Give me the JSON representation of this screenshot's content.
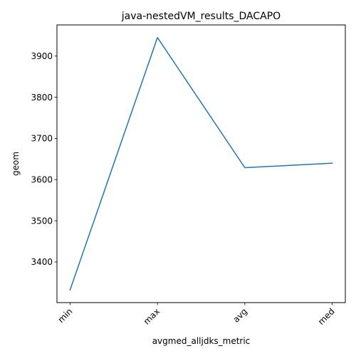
{
  "chart_data": {
    "type": "line",
    "title": "java-nestedVM_results_DACAPO",
    "xlabel": "avgmed_alljdks_metric",
    "ylabel": "geom",
    "categories": [
      "min",
      "max",
      "avg",
      "med"
    ],
    "series": [
      {
        "values": [
          3332,
          3945,
          3629,
          3640
        ],
        "color": "#1f77b4"
      }
    ],
    "ylim": [
      3301.35,
      3975.65
    ],
    "yticks": [
      3400,
      3500,
      3600,
      3700,
      3800,
      3900
    ],
    "grid": false,
    "legend": "none"
  }
}
